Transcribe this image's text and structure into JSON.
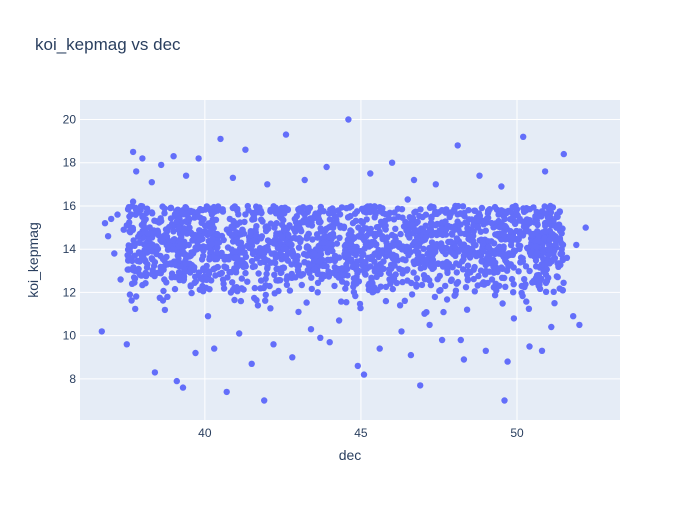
{
  "chart_data": {
    "type": "scatter",
    "title": "koi_kepmag vs dec",
    "xlabel": "dec",
    "ylabel": "koi_kepmag",
    "xlim": [
      36.0,
      53.3
    ],
    "ylim": [
      6.1,
      20.9
    ],
    "xticks": [
      40,
      45,
      50
    ],
    "yticks": [
      8,
      10,
      12,
      14,
      16,
      18,
      20
    ],
    "grid": true,
    "marker_color": "#636efa",
    "plot_background": "#e5ecf6",
    "grid_color": "#ffffff",
    "text_color": "#2a3f5f",
    "series": [
      {
        "x": [
          36.8,
          36.9,
          37.0,
          37.1,
          37.2,
          37.4,
          37.5,
          37.6,
          37.7,
          37.8,
          37.9,
          38.0,
          38.1,
          38.2,
          38.3,
          38.4,
          38.5,
          38.6,
          38.7,
          38.9,
          39.0,
          39.2,
          39.4,
          39.6,
          39.8,
          40.0,
          40.2,
          40.4,
          40.6,
          40.8,
          41.0,
          41.2,
          41.4,
          41.6,
          41.8,
          42.0,
          42.3,
          42.6,
          42.9,
          43.2,
          43.5,
          43.8,
          44.1,
          44.4,
          44.7,
          45.0,
          45.3,
          45.6,
          45.9,
          46.2,
          46.5,
          46.8,
          47.1,
          47.4,
          47.7,
          48.0,
          48.3,
          48.6,
          48.9,
          49.2,
          49.5,
          49.8,
          50.1,
          50.4,
          50.7,
          51.0,
          51.3,
          51.6,
          51.9,
          52.2,
          37.7,
          37.8,
          38.0,
          38.3,
          38.6,
          39.0,
          39.4,
          39.8,
          40.5,
          40.9,
          41.3,
          42.0,
          42.6,
          43.2,
          43.9,
          44.6,
          45.3,
          46.0,
          46.7,
          47.4,
          48.1,
          48.8,
          49.5,
          50.2,
          50.9,
          51.5,
          37.3,
          38.8,
          40.1,
          41.7,
          43.0,
          44.3,
          45.8,
          47.2,
          48.4,
          49.9,
          51.2,
          36.7,
          37.5,
          38.4,
          39.1,
          39.7,
          40.3,
          40.7,
          41.1,
          41.5,
          42.2,
          42.8,
          43.4,
          44.0,
          44.9,
          45.6,
          46.3,
          46.9,
          47.6,
          48.3,
          49.0,
          49.7,
          50.4,
          51.1,
          51.8,
          37.6,
          39.3,
          41.9,
          43.7,
          45.1,
          46.6,
          48.2,
          49.6,
          50.8,
          52.0
        ],
        "y": [
          15.2,
          14.6,
          15.4,
          13.8,
          15.6,
          14.9,
          15.1,
          13.6,
          16.2,
          15.8,
          14.3,
          15.5,
          12.9,
          14.1,
          15.7,
          13.4,
          14.8,
          15.3,
          12.6,
          15.9,
          14.0,
          13.2,
          15.6,
          14.4,
          12.8,
          15.1,
          13.9,
          14.7,
          12.4,
          15.4,
          13.6,
          14.9,
          15.8,
          12.2,
          14.5,
          13.1,
          15.2,
          14.0,
          12.7,
          15.6,
          13.8,
          14.3,
          15.0,
          12.5,
          14.6,
          15.3,
          13.2,
          14.8,
          12.9,
          15.5,
          16.3,
          14.1,
          13.5,
          15.7,
          12.3,
          14.9,
          13.7,
          15.1,
          14.4,
          12.6,
          15.8,
          13.3,
          14.7,
          15.2,
          12.8,
          14.0,
          15.5,
          13.6,
          14.2,
          15.0,
          18.5,
          17.6,
          18.2,
          17.1,
          17.9,
          18.3,
          17.4,
          18.2,
          19.1,
          17.3,
          18.6,
          17.0,
          19.3,
          17.2,
          17.8,
          20.0,
          17.5,
          18.0,
          17.2,
          17.0,
          18.8,
          17.4,
          16.9,
          19.2,
          17.6,
          18.4,
          12.6,
          11.8,
          10.9,
          11.4,
          11.1,
          10.7,
          11.6,
          10.5,
          11.2,
          10.8,
          11.5,
          10.2,
          9.6,
          8.3,
          7.9,
          9.2,
          9.4,
          7.4,
          10.1,
          8.7,
          9.6,
          9.0,
          10.3,
          9.7,
          8.6,
          9.4,
          10.2,
          7.7,
          9.8,
          8.9,
          9.3,
          8.8,
          9.5,
          10.4,
          10.9,
          11.9,
          7.6,
          7.0,
          9.9,
          8.2,
          9.1,
          9.8,
          7.0,
          9.3,
          10.5
        ]
      }
    ],
    "dense_band": {
      "x_range": [
        37.5,
        51.5
      ],
      "y_center": 14.2,
      "y_spread": 1.6,
      "count": 1800
    }
  }
}
